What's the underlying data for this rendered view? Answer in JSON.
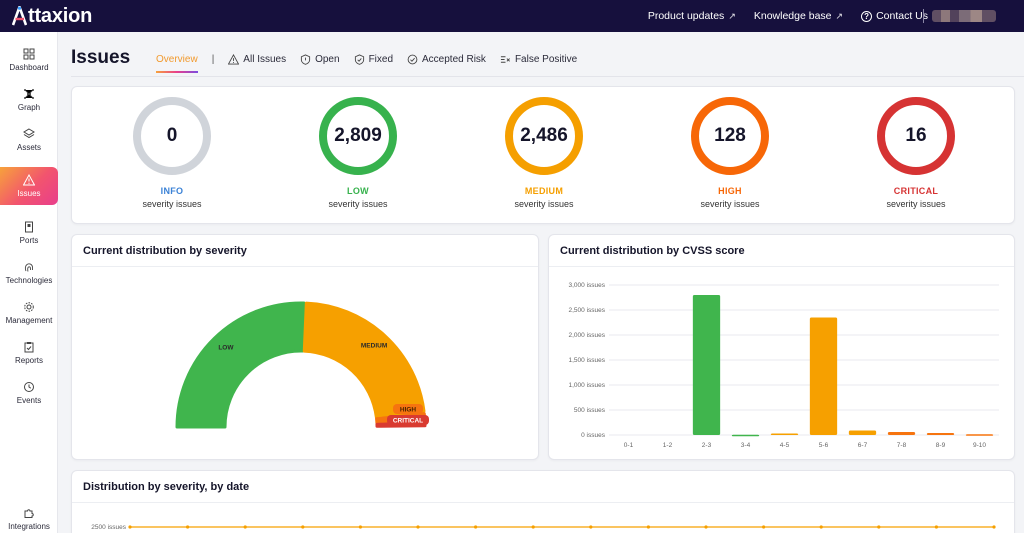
{
  "app": {
    "logo_text": "ttaxion",
    "links": [
      {
        "label": "Product updates"
      },
      {
        "label": "Knowledge base"
      },
      {
        "label": "Contact Us"
      }
    ]
  },
  "sidebar": {
    "items": [
      {
        "label": "Dashboard",
        "icon": "dashboard-icon"
      },
      {
        "label": "Graph",
        "icon": "graph-icon"
      },
      {
        "label": "Assets",
        "icon": "assets-icon"
      },
      {
        "label": "Issues",
        "icon": "warning-icon",
        "active": true
      },
      {
        "label": "Ports",
        "icon": "ports-icon"
      },
      {
        "label": "Technologies",
        "icon": "fingerprint-icon"
      },
      {
        "label": "Management",
        "icon": "gear-icon"
      },
      {
        "label": "Reports",
        "icon": "reports-icon"
      },
      {
        "label": "Events",
        "icon": "history-icon"
      },
      {
        "label": "Integrations",
        "icon": "puzzle-icon"
      }
    ]
  },
  "page": {
    "title": "Issues",
    "tabs": [
      {
        "label": "Overview"
      },
      {
        "label": "All Issues"
      },
      {
        "label": "Open"
      },
      {
        "label": "Fixed"
      },
      {
        "label": "Accepted Risk"
      },
      {
        "label": "False Positive"
      }
    ],
    "tab_separator": "|"
  },
  "summary": [
    {
      "value": "0",
      "label": "INFO",
      "sub": "severity issues",
      "color": "#d0d4da",
      "label_color": "#3b82d6"
    },
    {
      "value": "2,809",
      "label": "LOW",
      "sub": "severity issues",
      "color": "#37b24d",
      "label_color": "#37b24d"
    },
    {
      "value": "2,486",
      "label": "MEDIUM",
      "sub": "severity issues",
      "color": "#f59f00",
      "label_color": "#f59f00"
    },
    {
      "value": "128",
      "label": "HIGH",
      "sub": "severity issues",
      "color": "#f76707",
      "label_color": "#f76707"
    },
    {
      "value": "16",
      "label": "CRITICAL",
      "sub": "severity issues",
      "color": "#d63333",
      "label_color": "#d63333"
    }
  ],
  "cards": {
    "severity_title": "Current distribution by severity",
    "cvss_title": "Current distribution by CVSS score",
    "date_title": "Distribution by severity, by date"
  },
  "chart_data": [
    {
      "type": "pie",
      "categories": [
        "LOW",
        "MEDIUM",
        "HIGH",
        "CRITICAL"
      ],
      "values": [
        2809,
        2486,
        128,
        16
      ],
      "colors": [
        "#40b54d",
        "#f6a000",
        "#f6740f",
        "#d93a30"
      ],
      "title": "Current distribution by severity"
    },
    {
      "type": "bar",
      "title": "Current distribution by CVSS score",
      "categories": [
        "0-1",
        "1-2",
        "2-3",
        "3-4",
        "4-5",
        "5-6",
        "6-7",
        "7-8",
        "8-9",
        "9-10"
      ],
      "values": [
        0,
        0,
        2800,
        5,
        30,
        2350,
        90,
        60,
        40,
        15
      ],
      "colors": [
        "#40b54d",
        "#40b54d",
        "#40b54d",
        "#40b54d",
        "#f6a000",
        "#f6a000",
        "#f6a000",
        "#f6740f",
        "#f6740f",
        "#f6740f"
      ],
      "ylim": [
        0,
        3000
      ],
      "yticks": [
        "0 issues",
        "500 issues",
        "1,000 issues",
        "1,500 issues",
        "2,000 issues",
        "2,500 issues",
        "3,000 issues"
      ],
      "grid": true
    },
    {
      "type": "line",
      "title": "Distribution by severity, by date",
      "ytick_visible": "2500 issues",
      "values": [
        2500,
        2500,
        2500,
        2500,
        2500,
        2500,
        2500,
        2500,
        2500,
        2500,
        2500,
        2500,
        2500,
        2500,
        2500,
        2500
      ],
      "color": "#f6a000",
      "ylim": [
        0,
        2600
      ]
    }
  ]
}
